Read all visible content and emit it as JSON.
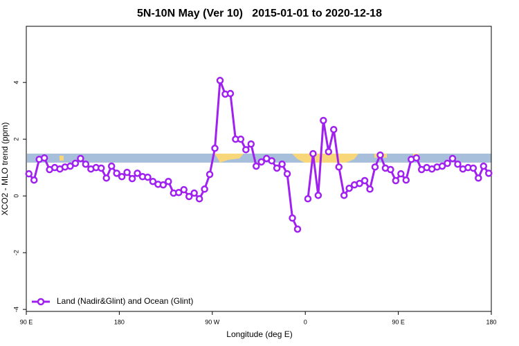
{
  "chart_data": {
    "type": "line",
    "title": "5N-10N May (Ver 10)   2015-01-01 to 2020-12-18",
    "xlabel": "Longitude (deg E)",
    "ylabel": "XCO2 - MLO trend (ppm)",
    "xlim": [
      90,
      540
    ],
    "ylim": [
      -4.07,
      5.98
    ],
    "xticks": [
      {
        "value": 90,
        "label": "90 E"
      },
      {
        "value": 180,
        "label": "180"
      },
      {
        "value": 270,
        "label": "90 W"
      },
      {
        "value": 360,
        "label": "0"
      },
      {
        "value": 450,
        "label": "90 E"
      },
      {
        "value": 540,
        "label": "180"
      }
    ],
    "yticks": [
      -4,
      -2,
      0,
      2,
      4
    ],
    "legend": "bottom-left",
    "x": [
      92.5,
      97.5,
      102.5,
      107.5,
      112.5,
      117.5,
      122.5,
      127.5,
      132.5,
      137.5,
      142.5,
      147.5,
      152.5,
      157.5,
      162.5,
      167.5,
      172.5,
      177.5,
      182.5,
      187.5,
      192.5,
      197.5,
      202.5,
      207.5,
      212.5,
      217.5,
      222.5,
      227.5,
      232.5,
      237.5,
      242.5,
      247.5,
      252.5,
      257.5,
      262.5,
      267.5,
      272.5,
      277.5,
      282.5,
      287.5,
      292.5,
      297.5,
      302.5,
      307.5,
      312.5,
      317.5,
      322.5,
      327.5,
      332.5,
      337.5,
      342.5,
      347.5,
      352.5,
      357.5,
      362.5,
      367.5,
      372.5,
      377.5,
      382.5,
      387.5,
      392.5,
      397.5,
      402.5,
      407.5,
      412.5,
      417.5,
      422.5,
      427.5,
      432.5,
      437.5,
      442.5,
      447.5,
      452.5,
      457.5,
      462.5,
      467.5,
      472.5,
      477.5,
      482.5,
      487.5,
      492.5,
      497.5,
      502.5,
      507.5,
      512.5,
      517.5,
      522.5,
      527.5,
      532.5,
      537.5
    ],
    "series": [
      {
        "name": "Land (Nadir&Glint) and Ocean (Glint)",
        "color": "#a020f0",
        "values": [
          0.78,
          0.56,
          1.29,
          1.34,
          0.93,
          1.0,
          0.95,
          1.02,
          1.05,
          1.15,
          1.32,
          1.12,
          0.95,
          1.0,
          0.98,
          0.63,
          1.05,
          0.8,
          0.68,
          0.83,
          0.61,
          0.8,
          0.68,
          0.66,
          0.51,
          0.41,
          0.39,
          0.51,
          0.1,
          0.12,
          0.22,
          -0.02,
          0.1,
          -0.1,
          0.24,
          0.76,
          1.68,
          4.07,
          3.59,
          3.61,
          2.0,
          2.0,
          1.63,
          1.83,
          1.05,
          1.2,
          1.32,
          1.24,
          0.98,
          1.12,
          0.78,
          -0.78,
          -1.17,
          null,
          -0.1,
          1.49,
          0.02,
          2.66,
          1.56,
          2.34,
          1.02,
          0.02,
          0.27,
          0.39,
          0.44,
          0.54,
          0.24,
          1.02,
          1.44,
          0.98,
          0.93,
          0.54,
          0.78,
          0.56,
          1.29,
          1.34,
          0.93,
          1.0,
          0.95,
          1.02,
          1.05,
          1.15,
          1.32,
          1.12,
          0.95,
          1.0,
          0.98,
          0.63,
          1.05,
          0.8
        ]
      }
    ]
  }
}
